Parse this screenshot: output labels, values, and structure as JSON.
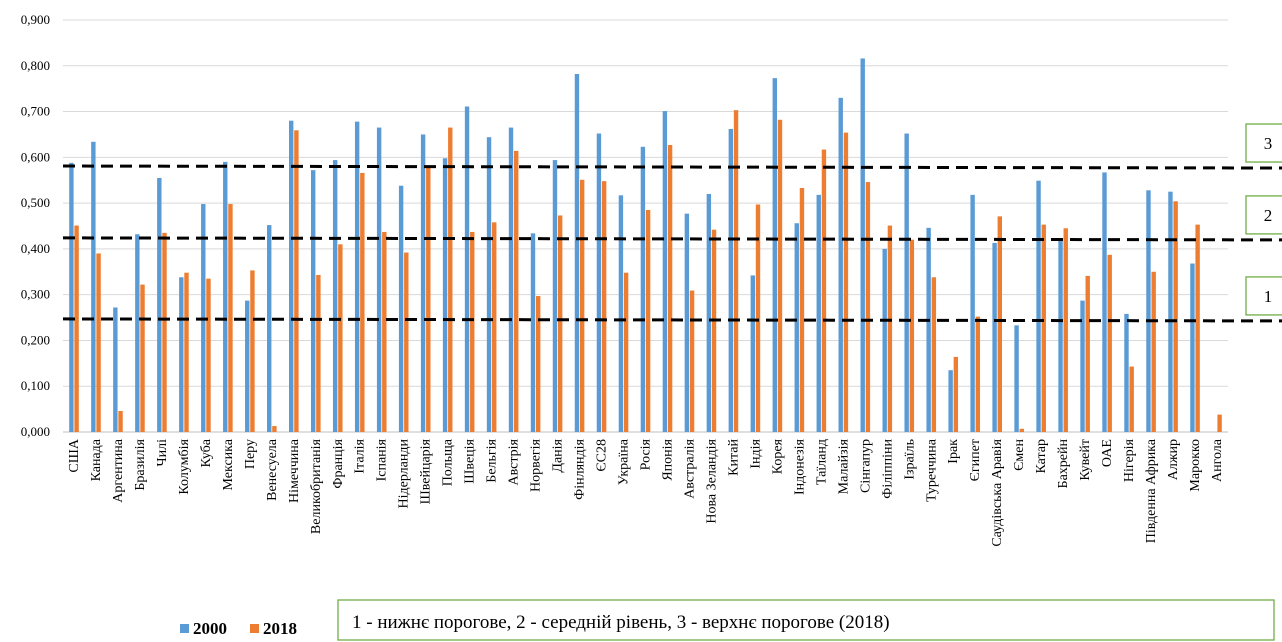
{
  "chart_data": {
    "type": "bar",
    "yticks": [
      "0,000",
      "0,100",
      "0,200",
      "0,300",
      "0,400",
      "0,500",
      "0,600",
      "0,700",
      "0,800",
      "0,900"
    ],
    "ylim": [
      0,
      0.9
    ],
    "grid": true,
    "categories": [
      "США",
      "Канада",
      "Аргентина",
      "Бразилія",
      "Чилі",
      "Колумбія",
      "Куба",
      "Мексика",
      "Перу",
      "Венесуела",
      "Німеччина",
      "Великобританія",
      "Франція",
      "Італія",
      "Іспанія",
      "Нідерланди",
      "Швейцарія",
      "Польща",
      "Швеція",
      "Бельгія",
      "Австрія",
      "Норвегія",
      "Данія",
      "Фінляндія",
      "ЄС28",
      "Україна",
      "Росія",
      "Японія",
      "Австралія",
      "Нова Зеландія",
      "Китай",
      "Індія",
      "Корея",
      "Індонезія",
      "Таїланд",
      "Малайзія",
      "Сінгапур",
      "Філіппіни",
      "Ізраїль",
      "Туреччина",
      "Ірак",
      "Єгипет",
      "Саудівська Аравія",
      "Ємен",
      "Катар",
      "Бахрейн",
      "Кувейт",
      "ОАЕ",
      "Нігерія",
      "Південна Африка",
      "Алжир",
      "Марокко",
      "Ангола"
    ],
    "series": [
      {
        "name": "2000",
        "color": "#5b9bd5",
        "values": [
          0.588,
          0.634,
          0.272,
          0.432,
          0.555,
          0.338,
          0.498,
          0.59,
          0.287,
          0.452,
          0.68,
          0.572,
          0.594,
          0.678,
          0.665,
          0.538,
          0.65,
          0.598,
          0.711,
          0.644,
          0.665,
          0.434,
          0.594,
          0.782,
          0.652,
          0.517,
          0.623,
          0.701,
          0.477,
          0.52,
          0.662,
          0.342,
          0.773,
          0.456,
          0.518,
          0.73,
          0.816,
          0.4,
          0.652,
          0.446,
          0.135,
          0.518,
          0.413,
          0.233,
          0.549,
          0.42,
          0.287,
          0.567,
          0.258,
          0.528,
          0.525,
          0.368,
          0.0
        ]
      },
      {
        "name": "2018",
        "color": "#ed7d31",
        "values": [
          0.451,
          0.39,
          0.046,
          0.322,
          0.435,
          0.348,
          0.335,
          0.498,
          0.353,
          0.013,
          0.659,
          0.343,
          0.41,
          0.566,
          0.437,
          0.392,
          0.579,
          0.665,
          0.437,
          0.458,
          0.614,
          0.297,
          0.473,
          0.551,
          0.548,
          0.348,
          0.485,
          0.627,
          0.309,
          0.442,
          0.703,
          0.497,
          0.682,
          0.533,
          0.617,
          0.654,
          0.546,
          0.451,
          0.42,
          0.338,
          0.164,
          0.252,
          0.471,
          0.007,
          0.453,
          0.445,
          0.341,
          0.387,
          0.143,
          0.35,
          0.504,
          0.453,
          0.038
        ]
      }
    ],
    "thresholds": [
      {
        "label": "1",
        "value": 0.247
      },
      {
        "label": "2",
        "value": 0.424
      },
      {
        "label": "3",
        "value": 0.581
      }
    ],
    "legend": {
      "position": "bottom-left",
      "items": [
        "2000",
        "2018"
      ]
    },
    "note": "1 - нижнє порогове, 2 - середній рівень, 3 - верхнє порогове  (2018)"
  }
}
